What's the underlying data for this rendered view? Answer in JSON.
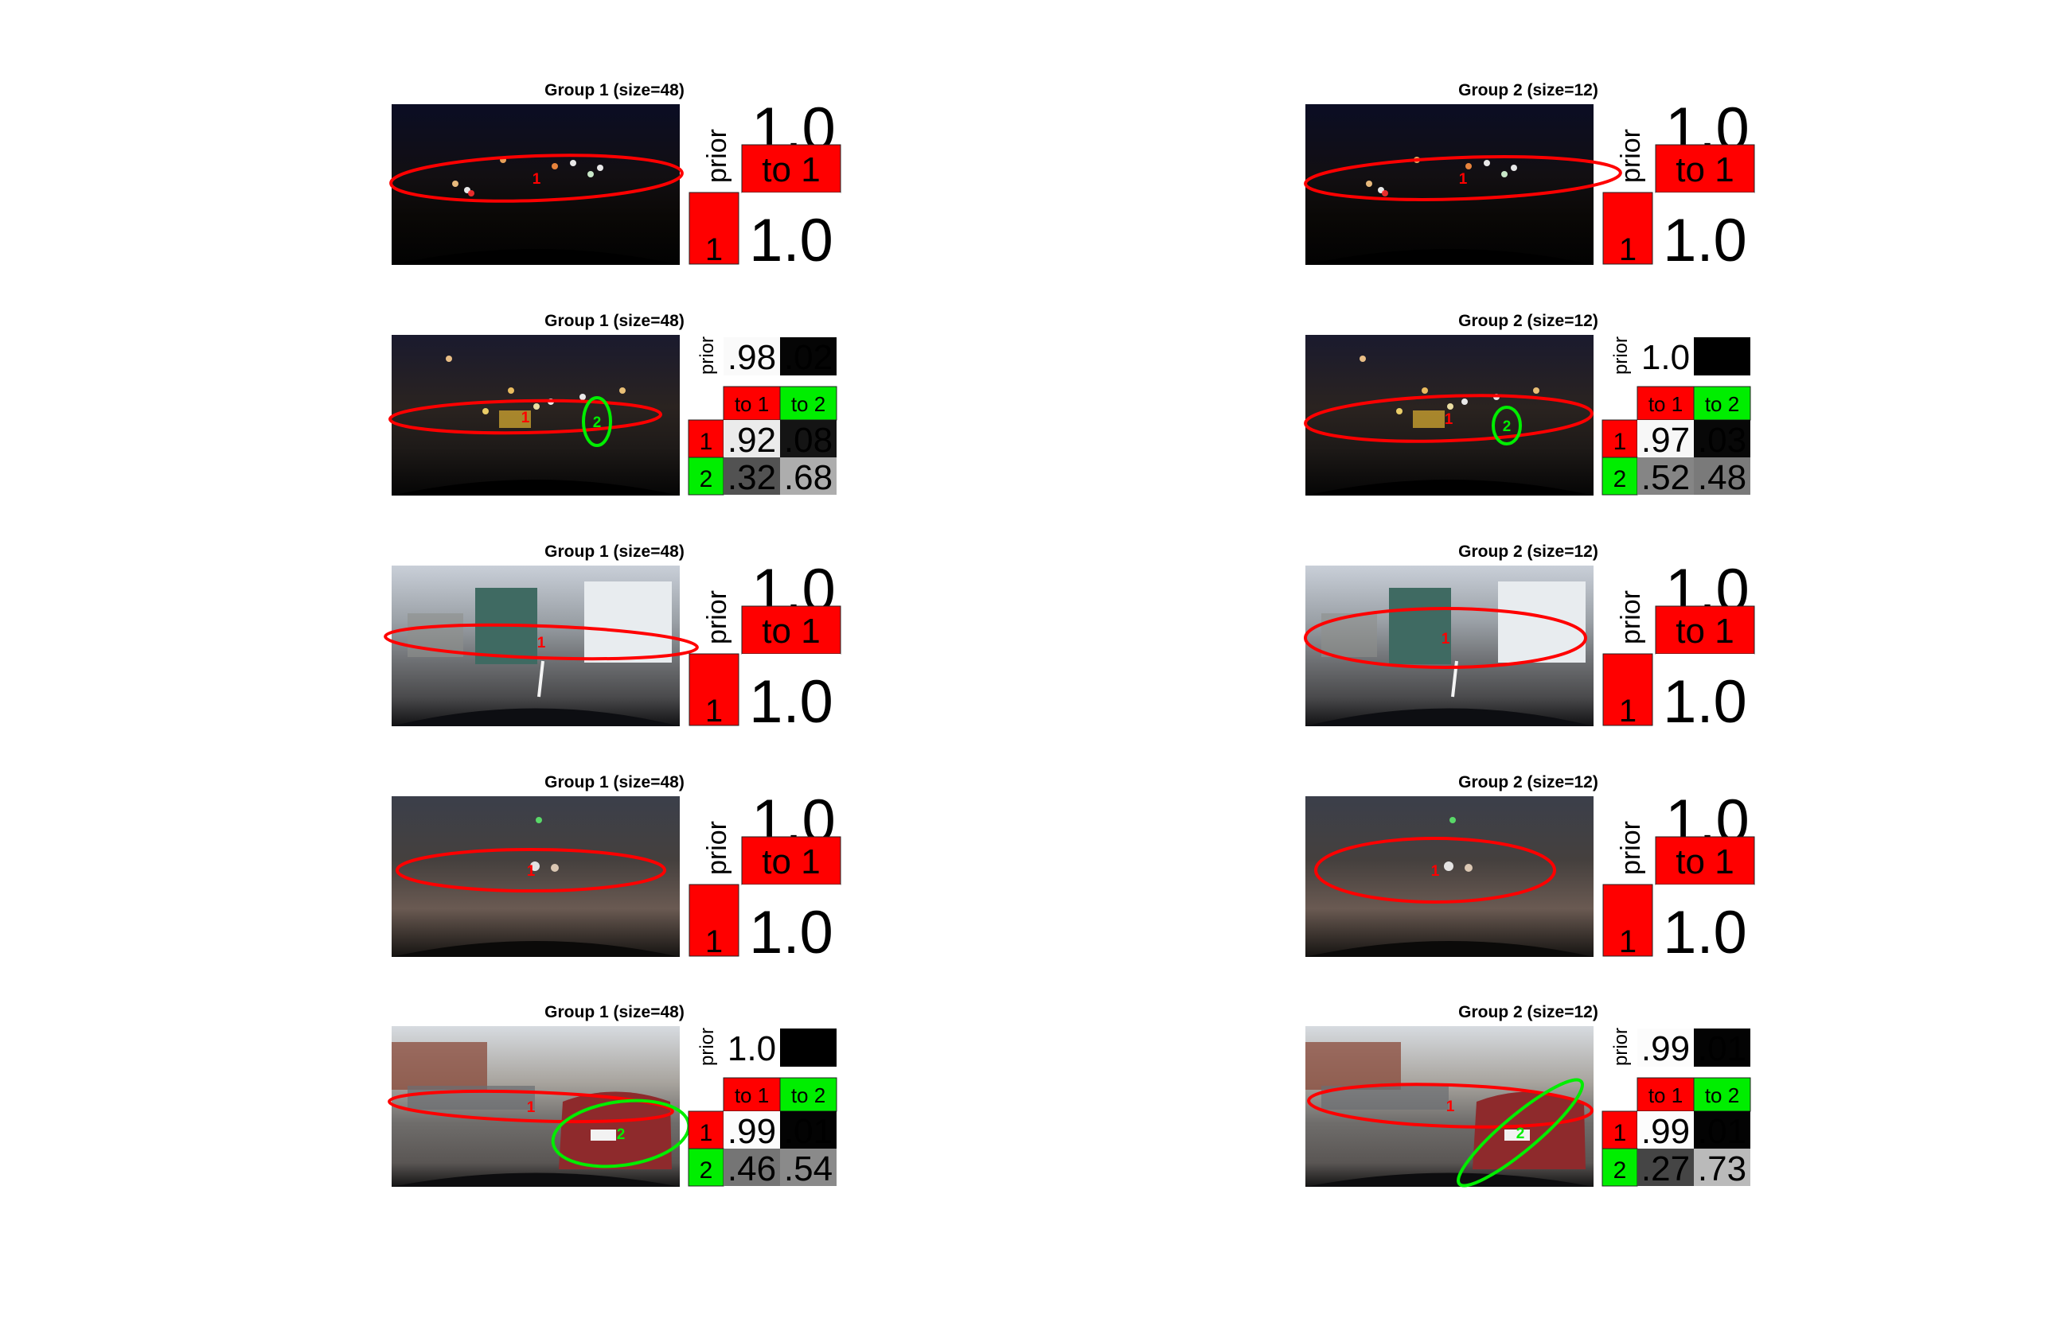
{
  "colors": {
    "cluster1": "#ff0000",
    "cluster2": "#00ee00"
  },
  "panels": [
    {
      "title": "Group 1 (size=48)",
      "scene": "night-street",
      "k": 1,
      "ellipses": [
        {
          "label": "1",
          "color": "red"
        }
      ],
      "prior_label": "prior",
      "prior": [
        "1.0"
      ],
      "to_labels": [
        "to 1"
      ],
      "row_labels": [
        "1"
      ],
      "transitions": [
        [
          "1.0"
        ]
      ],
      "prior_values": [
        1.0
      ],
      "transition_values": [
        [
          1.0
        ]
      ]
    },
    {
      "title": "Group 2 (size=12)",
      "scene": "night-street",
      "k": 1,
      "ellipses": [
        {
          "label": "1",
          "color": "red"
        }
      ],
      "prior_label": "prior",
      "prior": [
        "1.0"
      ],
      "to_labels": [
        "to 1"
      ],
      "row_labels": [
        "1"
      ],
      "transitions": [
        [
          "1.0"
        ]
      ],
      "prior_values": [
        1.0
      ],
      "transition_values": [
        [
          1.0
        ]
      ]
    },
    {
      "title": "Group 1 (size=48)",
      "scene": "night-city",
      "k": 2,
      "ellipses": [
        {
          "label": "1",
          "color": "red"
        },
        {
          "label": "2",
          "color": "green"
        }
      ],
      "prior_label": "prior",
      "prior": [
        ".98",
        ".02"
      ],
      "to_labels": [
        "to 1",
        "to 2"
      ],
      "row_labels": [
        "1",
        "2"
      ],
      "transitions": [
        [
          ".92",
          ".08"
        ],
        [
          ".32",
          ".68"
        ]
      ],
      "prior_values": [
        0.98,
        0.02
      ],
      "transition_values": [
        [
          0.92,
          0.08
        ],
        [
          0.32,
          0.68
        ]
      ]
    },
    {
      "title": "Group 2 (size=12)",
      "scene": "night-city",
      "k": 2,
      "ellipses": [
        {
          "label": "1",
          "color": "red"
        },
        {
          "label": "2",
          "color": "green"
        }
      ],
      "prior_label": "prior",
      "prior": [
        "1.0",
        ".00"
      ],
      "to_labels": [
        "to 1",
        "to 2"
      ],
      "row_labels": [
        "1",
        "2"
      ],
      "transitions": [
        [
          ".97",
          ".03"
        ],
        [
          ".52",
          ".48"
        ]
      ],
      "prior_values": [
        1.0,
        0.0
      ],
      "transition_values": [
        [
          0.97,
          0.03
        ],
        [
          0.52,
          0.48
        ]
      ]
    },
    {
      "title": "Group 1 (size=48)",
      "scene": "day-trucks",
      "k": 1,
      "ellipses": [
        {
          "label": "1",
          "color": "red"
        }
      ],
      "prior_label": "prior",
      "prior": [
        "1.0"
      ],
      "to_labels": [
        "to 1"
      ],
      "row_labels": [
        "1"
      ],
      "transitions": [
        [
          "1.0"
        ]
      ],
      "prior_values": [
        1.0
      ],
      "transition_values": [
        [
          1.0
        ]
      ]
    },
    {
      "title": "Group 2 (size=12)",
      "scene": "day-trucks",
      "k": 1,
      "ellipses": [
        {
          "label": "1",
          "color": "red"
        }
      ],
      "prior_label": "prior",
      "prior": [
        "1.0"
      ],
      "to_labels": [
        "to 1"
      ],
      "row_labels": [
        "1"
      ],
      "transitions": [
        [
          "1.0"
        ]
      ],
      "prior_values": [
        1.0
      ],
      "transition_values": [
        [
          1.0
        ]
      ]
    },
    {
      "title": "Group 1 (size=48)",
      "scene": "dusk-road",
      "k": 1,
      "ellipses": [
        {
          "label": "1",
          "color": "red"
        }
      ],
      "prior_label": "prior",
      "prior": [
        "1.0"
      ],
      "to_labels": [
        "to 1"
      ],
      "row_labels": [
        "1"
      ],
      "transitions": [
        [
          "1.0"
        ]
      ],
      "prior_values": [
        1.0
      ],
      "transition_values": [
        [
          1.0
        ]
      ]
    },
    {
      "title": "Group 2 (size=12)",
      "scene": "dusk-road",
      "k": 1,
      "ellipses": [
        {
          "label": "1",
          "color": "red"
        }
      ],
      "prior_label": "prior",
      "prior": [
        "1.0"
      ],
      "to_labels": [
        "to 1"
      ],
      "row_labels": [
        "1"
      ],
      "transitions": [
        [
          "1.0"
        ]
      ],
      "prior_values": [
        1.0
      ],
      "transition_values": [
        [
          1.0
        ]
      ]
    },
    {
      "title": "Group 1 (size=48)",
      "scene": "day-suv",
      "k": 2,
      "ellipses": [
        {
          "label": "1",
          "color": "red"
        },
        {
          "label": "2",
          "color": "green"
        }
      ],
      "prior_label": "prior",
      "prior": [
        "1.0",
        ".00"
      ],
      "to_labels": [
        "to 1",
        "to 2"
      ],
      "row_labels": [
        "1",
        "2"
      ],
      "transitions": [
        [
          ".99",
          ".01"
        ],
        [
          ".46",
          ".54"
        ]
      ],
      "prior_values": [
        1.0,
        0.0
      ],
      "transition_values": [
        [
          0.99,
          0.01
        ],
        [
          0.46,
          0.54
        ]
      ]
    },
    {
      "title": "Group 2 (size=12)",
      "scene": "day-suv",
      "k": 2,
      "ellipses": [
        {
          "label": "1",
          "color": "red"
        },
        {
          "label": "2",
          "color": "green"
        }
      ],
      "prior_label": "prior",
      "prior": [
        ".99",
        ".01"
      ],
      "to_labels": [
        "to 1",
        "to 2"
      ],
      "row_labels": [
        "1",
        "2"
      ],
      "transitions": [
        [
          ".99",
          ".01"
        ],
        [
          ".27",
          ".73"
        ]
      ],
      "prior_values": [
        0.99,
        0.01
      ],
      "transition_values": [
        [
          0.99,
          0.01
        ],
        [
          0.27,
          0.73
        ]
      ]
    }
  ]
}
